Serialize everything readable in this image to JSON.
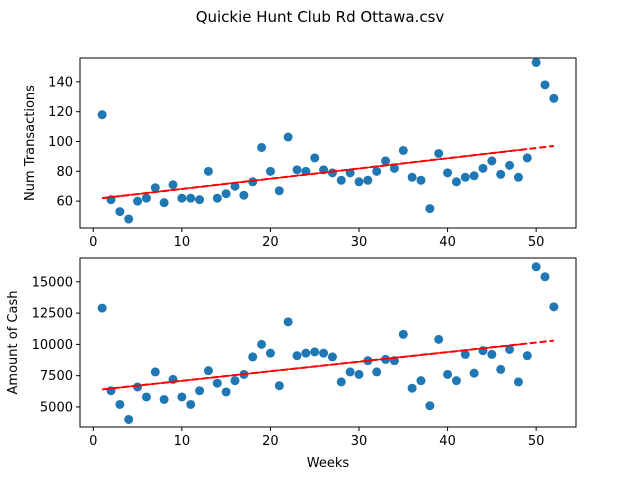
{
  "figure": {
    "suptitle": "Quickie Hunt Club Rd Ottawa.csv",
    "colors": {
      "points": "#1f77b4",
      "trend": "#ff0000",
      "axis": "#000000"
    }
  },
  "chart_data": [
    {
      "type": "scatter",
      "title": "",
      "xlabel": "",
      "ylabel": "Num Transactions",
      "xlim": [
        -1.5,
        54.5
      ],
      "ylim": [
        42,
        156
      ],
      "xticks": [
        0,
        10,
        20,
        30,
        40,
        50
      ],
      "yticks": [
        60,
        80,
        100,
        120,
        140
      ],
      "ytick_labels": [
        "60",
        "80",
        "100",
        "120",
        "140"
      ],
      "grid": false,
      "x": [
        1,
        2,
        3,
        4,
        5,
        6,
        7,
        8,
        9,
        10,
        11,
        12,
        13,
        14,
        15,
        16,
        17,
        18,
        19,
        20,
        21,
        22,
        23,
        24,
        25,
        26,
        27,
        28,
        29,
        30,
        31,
        32,
        33,
        34,
        35,
        36,
        37,
        38,
        39,
        40,
        41,
        42,
        43,
        44,
        45,
        46,
        47,
        48,
        49,
        50,
        51,
        52
      ],
      "y": [
        118,
        61,
        53,
        48,
        60,
        62,
        69,
        59,
        71,
        62,
        62,
        61,
        80,
        62,
        65,
        70,
        64,
        73,
        96,
        80,
        67,
        103,
        81,
        80,
        89,
        81,
        79,
        74,
        79,
        73,
        74,
        80,
        87,
        82,
        94,
        76,
        74,
        55,
        92,
        79,
        73,
        76,
        77,
        82,
        87,
        78,
        84,
        76,
        89,
        153,
        138,
        129
      ],
      "trend": {
        "x": [
          1,
          52
        ],
        "y": [
          62,
          97
        ]
      }
    },
    {
      "type": "scatter",
      "title": "",
      "xlabel": "Weeks",
      "ylabel": "Amount of Cash",
      "xlim": [
        -1.5,
        54.5
      ],
      "ylim": [
        3400,
        16900
      ],
      "xticks": [
        0,
        10,
        20,
        30,
        40,
        50
      ],
      "yticks": [
        5000,
        7500,
        10000,
        12500,
        15000
      ],
      "ytick_labels": [
        "5000",
        "7500",
        "10000",
        "12500",
        "15000"
      ],
      "grid": false,
      "x": [
        1,
        2,
        3,
        4,
        5,
        6,
        7,
        8,
        9,
        10,
        11,
        12,
        13,
        14,
        15,
        16,
        17,
        18,
        19,
        20,
        21,
        22,
        23,
        24,
        25,
        26,
        27,
        28,
        29,
        30,
        31,
        32,
        33,
        34,
        35,
        36,
        37,
        38,
        39,
        40,
        41,
        42,
        43,
        44,
        45,
        46,
        47,
        48,
        49,
        50,
        51,
        52
      ],
      "y": [
        12900,
        6300,
        5200,
        4000,
        6600,
        5800,
        7800,
        5600,
        7200,
        5800,
        5200,
        6300,
        7900,
        6900,
        6200,
        7100,
        7600,
        9000,
        10000,
        9300,
        6700,
        11800,
        9100,
        9300,
        9400,
        9300,
        9000,
        7000,
        7800,
        7600,
        8700,
        7800,
        8800,
        8700,
        10800,
        6500,
        7100,
        5100,
        10400,
        7600,
        7100,
        9200,
        7700,
        9500,
        9200,
        8000,
        9600,
        7000,
        9100,
        16200,
        15400,
        13000
      ],
      "trend": {
        "x": [
          1,
          52
        ],
        "y": [
          6400,
          10300
        ]
      }
    }
  ]
}
